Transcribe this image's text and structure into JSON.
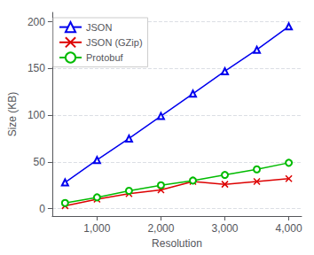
{
  "chart_data": {
    "type": "line",
    "xlabel": "Resolution",
    "ylabel": "Size (KB)",
    "x": [
      500,
      1000,
      1500,
      2000,
      2500,
      3000,
      3500,
      4000
    ],
    "series": [
      {
        "name": "JSON",
        "color": "#0000ee",
        "marker": "triangle",
        "values": [
          28,
          52,
          75,
          99,
          123,
          147,
          170,
          195
        ]
      },
      {
        "name": "JSON (GZip)",
        "color": "#dd0000",
        "marker": "x",
        "values": [
          3,
          10,
          16,
          20,
          29,
          26,
          29,
          32
        ]
      },
      {
        "name": "Protobuf",
        "color": "#00bb00",
        "marker": "circle",
        "values": [
          6,
          12,
          19,
          25,
          30,
          36,
          42,
          49
        ]
      }
    ],
    "xlim": [
      300,
      4200
    ],
    "ylim": [
      -8,
      210
    ],
    "xticks": [
      {
        "value": 1000,
        "label": "1,000"
      },
      {
        "value": 2000,
        "label": "2,000"
      },
      {
        "value": 3000,
        "label": "3,000"
      },
      {
        "value": 4000,
        "label": "4,000"
      }
    ],
    "yticks": [
      0,
      50,
      100,
      150,
      200
    ],
    "grid": true,
    "legend": "upper left"
  }
}
